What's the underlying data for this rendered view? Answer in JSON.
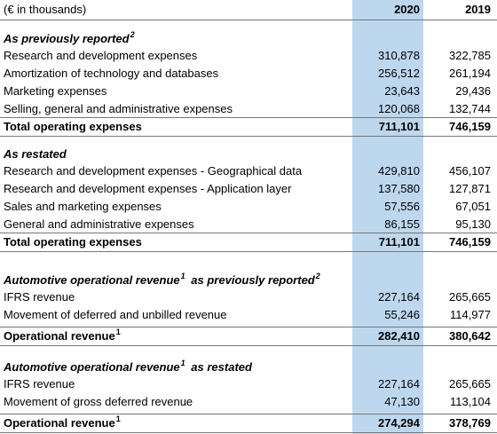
{
  "header": {
    "unit": "(€ in thousands)",
    "years": [
      "2020",
      "2019"
    ]
  },
  "sections": [
    {
      "heading": [
        {
          "text": "As previously reported",
          "sup": "2"
        }
      ],
      "rows": [
        {
          "label": "Research and development expenses",
          "values": [
            "310,878",
            "322,785"
          ]
        },
        {
          "label": "Amortization of technology and databases",
          "values": [
            "256,512",
            "261,194"
          ]
        },
        {
          "label": "Marketing expenses",
          "values": [
            "23,643",
            "29,436"
          ]
        },
        {
          "label": "Selling, general and administrative expenses",
          "values": [
            "120,068",
            "132,744"
          ]
        }
      ],
      "total": {
        "label": [
          {
            "text": "Total operating expenses"
          }
        ],
        "values": [
          "711,101",
          "746,159"
        ]
      }
    },
    {
      "heading": [
        {
          "text": "As restated"
        }
      ],
      "rows": [
        {
          "label": "Research and development expenses - Geographical data",
          "values": [
            "429,810",
            "456,107"
          ]
        },
        {
          "label": "Research and development expenses - Application layer",
          "values": [
            "137,580",
            "127,871"
          ]
        },
        {
          "label": "Sales and marketing expenses",
          "values": [
            "57,556",
            "67,051"
          ]
        },
        {
          "label": "General and administrative expenses",
          "values": [
            "86,155",
            "95,130"
          ]
        }
      ],
      "total": {
        "label": [
          {
            "text": "Total operating expenses"
          }
        ],
        "values": [
          "711,101",
          "746,159"
        ]
      }
    },
    {
      "heading": [
        {
          "text": "Automotive operational revenue",
          "sup": "1"
        },
        {
          "text": "as previously reported",
          "sup": "2"
        }
      ],
      "rows": [
        {
          "label": "IFRS revenue",
          "values": [
            "227,164",
            "265,665"
          ]
        },
        {
          "label": "Movement of deferred and unbilled revenue",
          "values": [
            "55,246",
            "114,977"
          ]
        }
      ],
      "total": {
        "label": [
          {
            "text": "Operational revenue",
            "sup": "1"
          }
        ],
        "values": [
          "282,410",
          "380,642"
        ]
      }
    },
    {
      "heading": [
        {
          "text": "Automotive operational revenue",
          "sup": "1"
        },
        {
          "text": "as restated"
        }
      ],
      "rows": [
        {
          "label": "IFRS revenue",
          "values": [
            "227,164",
            "265,665"
          ]
        },
        {
          "label": "Movement of gross deferred revenue",
          "values": [
            "47,130",
            "113,104"
          ]
        }
      ],
      "total": {
        "label": [
          {
            "text": "Operational revenue",
            "sup": "1"
          }
        ],
        "values": [
          "274,294",
          "378,769"
        ]
      }
    }
  ]
}
